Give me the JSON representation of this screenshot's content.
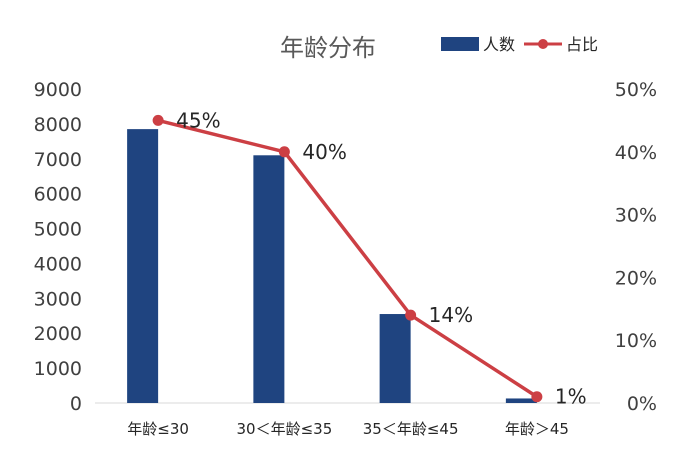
{
  "chart_data": {
    "type": "bar+line",
    "title": "年龄分布",
    "categories": [
      "年龄≤30",
      "30＜年龄≤35",
      "35＜年龄≤45",
      "年龄＞45"
    ],
    "series": [
      {
        "name": "人数",
        "type": "bar",
        "axis": "left",
        "color": "#1f4480",
        "values": [
          7850,
          7100,
          2550,
          130
        ]
      },
      {
        "name": "占比",
        "type": "line",
        "axis": "right",
        "color": "#cc3f44",
        "values": [
          45,
          40,
          14,
          1
        ],
        "labels": [
          "45%",
          "40%",
          "14%",
          "1%"
        ]
      }
    ],
    "y_left": {
      "min": 0,
      "max": 9000,
      "step": 1000,
      "ticks": [
        "0",
        "1000",
        "2000",
        "3000",
        "4000",
        "5000",
        "6000",
        "7000",
        "8000",
        "9000"
      ]
    },
    "y_right": {
      "min": 0,
      "max": 50,
      "step": 10,
      "ticks": [
        "0%",
        "10%",
        "20%",
        "30%",
        "40%",
        "50%"
      ]
    },
    "legend_position": "top-right",
    "grid": false
  }
}
